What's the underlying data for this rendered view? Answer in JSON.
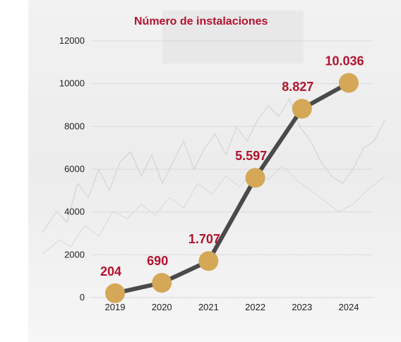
{
  "chart_data": {
    "type": "line",
    "title": "Número de instalaciones",
    "xlabel": "",
    "ylabel": "",
    "x": [
      "2019",
      "2020",
      "2021",
      "2022",
      "2023",
      "2024"
    ],
    "values": [
      204,
      690,
      1707,
      5597,
      8827,
      10036
    ],
    "data_labels": [
      "204",
      "690",
      "1.707",
      "5.597",
      "8.827",
      "10.036"
    ],
    "ylim": [
      0,
      12000
    ],
    "yticks": [
      "0",
      "2000",
      "4000",
      "6000",
      "8000",
      "10000",
      "12000"
    ],
    "grid": "horizontal",
    "colors": {
      "line": "#4a4a4a",
      "marker": "#d4a857",
      "label": "#b3122e",
      "grid": "#d9d9d9"
    }
  }
}
